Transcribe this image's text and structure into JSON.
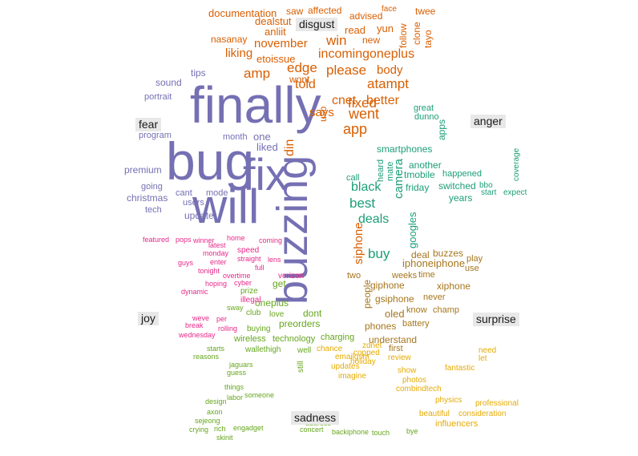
{
  "colors": {
    "anger": "#d95f02",
    "anticipation": "#1b9e77",
    "disgust": "#7570b3",
    "fear": "#e7298a",
    "joy": "#66a61e",
    "sadness": "#e6ab02",
    "surprise": "#a6761d",
    "trust": "#d95f02"
  },
  "labels": {
    "disgust": "disgust",
    "fear": "fear",
    "anger": "anger",
    "joy": "joy",
    "surprise": "surprise",
    "sadness": "sadness"
  },
  "words": {
    "big": [
      "finally",
      "bug",
      "fix",
      "will",
      "buzzing"
    ],
    "orange": [
      "documentation",
      "dealstut",
      "saw",
      "affected",
      "advised",
      "face",
      "twee",
      "nasanay",
      "anliit",
      "read",
      "yun",
      "tayo",
      "clone",
      "follow",
      "november",
      "win",
      "new",
      "etoissue",
      "incomingoneplus",
      "edge",
      "amp",
      "please",
      "body",
      "fixed",
      "atampt",
      "went",
      "cnet",
      "better",
      "app",
      "says",
      "liking",
      "wont",
      "told",
      "din",
      "usb",
      "one",
      "liked",
      "month"
    ],
    "green": [
      "black",
      "best",
      "deals",
      "camera",
      "buy",
      "googles",
      "friday",
      "smartphones",
      "tmobile",
      "happened",
      "another",
      "switched",
      "years",
      "call",
      "heard",
      "mate",
      "siphone",
      "apps",
      "great",
      "dunno",
      "bbo",
      "coverage",
      "start",
      "expect"
    ],
    "purple": [
      "finally",
      "bug",
      "fix",
      "will",
      "buzzing",
      "update",
      "christmas",
      "users",
      "premium",
      "mode",
      "sound",
      "portrait",
      "program",
      "tips",
      "going",
      "tech",
      "cant"
    ],
    "pink": [
      "featured",
      "pops",
      "winner",
      "home",
      "coming",
      "overtime",
      "cyber",
      "guys",
      "enter",
      "hoping",
      "tonight",
      "dynamic",
      "break",
      "weve",
      "wednesday",
      "per",
      "rolling",
      "full",
      "speed",
      "monday",
      "latest",
      "straight",
      "lens"
    ],
    "olive": [
      "get",
      "oneplus",
      "preorders",
      "dont",
      "wireless",
      "technology",
      "charging",
      "buying",
      "club",
      "love",
      "sway",
      "prize",
      "illegal",
      "verizon"
    ],
    "brown": [
      "iphoneiphone",
      "giphone",
      "xiphone",
      "gsiphone",
      "oled",
      "phones",
      "battery",
      "understand",
      "first",
      "deal",
      "buzzes",
      "play",
      "know",
      "champ",
      "time",
      "use",
      "never",
      "weeks",
      "two",
      "people"
    ],
    "gold": [
      "sadness",
      "influencers",
      "consideration",
      "professional",
      "beautiful",
      "combindtech",
      "fantastic",
      "physics",
      "review",
      "show",
      "photos",
      "imagine",
      "updates",
      "holiday",
      "emailgsm",
      "copped",
      "zdnet",
      "chance",
      "need",
      "let"
    ],
    "gray": [
      "disgust",
      "concert",
      "address",
      "backiphone",
      "touch",
      "bye",
      "skinit",
      "crying",
      "rich",
      "engadget",
      "sejeong",
      "axon",
      "design",
      "labor",
      "someone",
      "things",
      "guess",
      "jaguars",
      "reasons",
      "starts",
      "wallethigh",
      "well",
      "still"
    ]
  }
}
